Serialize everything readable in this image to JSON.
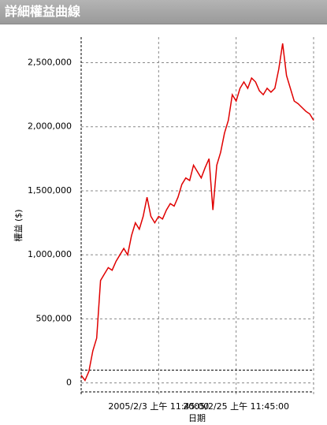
{
  "header": {
    "title": "詳細權益曲線"
  },
  "chart_data": {
    "type": "line",
    "y_label": "權益 ($)",
    "x_label": "日期",
    "categories": [
      null,
      null,
      null,
      null,
      null,
      null,
      null,
      null,
      null,
      null,
      null,
      null,
      null,
      null,
      null,
      null,
      null,
      null,
      null,
      null,
      "2005/2/3 上午 11:45:00",
      null,
      null,
      null,
      null,
      null,
      null,
      null,
      null,
      null,
      null,
      null,
      null,
      null,
      null,
      null,
      null,
      null,
      null,
      null,
      "2005/2/25 上午 11:45:00",
      null,
      null,
      null,
      null,
      null,
      null,
      null,
      null,
      null,
      null,
      null,
      null,
      null,
      null,
      null,
      null,
      null,
      null,
      null,
      null
    ],
    "values": [
      60000,
      20000,
      90000,
      250000,
      350000,
      800000,
      850000,
      900000,
      880000,
      950000,
      1000000,
      1050000,
      1000000,
      1150000,
      1250000,
      1200000,
      1300000,
      1450000,
      1300000,
      1250000,
      1300000,
      1280000,
      1350000,
      1400000,
      1380000,
      1450000,
      1550000,
      1600000,
      1580000,
      1700000,
      1650000,
      1600000,
      1680000,
      1750000,
      1350000,
      1700000,
      1800000,
      1950000,
      2050000,
      2250000,
      2200000,
      2300000,
      2350000,
      2300000,
      2380000,
      2350000,
      2280000,
      2250000,
      2300000,
      2270000,
      2300000,
      2450000,
      2650000,
      2400000,
      2300000,
      2200000,
      2180000,
      2150000,
      2120000,
      2100000,
      2050000
    ],
    "color": "#e00000",
    "ylim": [
      -70000,
      2700000
    ],
    "yticks": [
      {
        "value": 0,
        "label": "0"
      },
      {
        "value": 500000,
        "label": "500,000"
      },
      {
        "value": 1000000,
        "label": "1,000,000"
      },
      {
        "value": 1500000,
        "label": "1,500,000"
      },
      {
        "value": 2000000,
        "label": "2,000,000"
      },
      {
        "value": 2500000,
        "label": "2,500,000"
      }
    ],
    "reference_line": 100000,
    "grid": true
  }
}
